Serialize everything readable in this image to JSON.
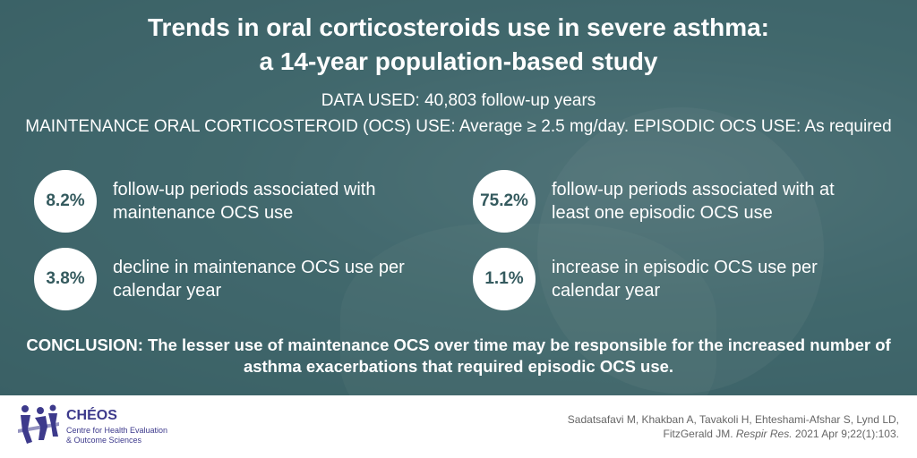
{
  "header": {
    "title_line1": "Trends in oral corticosteroids use in severe asthma:",
    "title_line2": "a 14-year population-based study",
    "data_used": "DATA USED: 40,803 follow-up years",
    "ocs_definition": "MAINTENANCE ORAL CORTICOSTEROID (OCS) USE: Average ≥ 2.5 mg/day. EPISODIC OCS USE: As required"
  },
  "stats": [
    {
      "value": "8.2%",
      "text": "follow-up periods associated with maintenance OCS use"
    },
    {
      "value": "75.2%",
      "text": "follow-up periods associated with at least one episodic OCS use"
    },
    {
      "value": "3.8%",
      "text": "decline in maintenance OCS use per calendar year"
    },
    {
      "value": "1.1%",
      "text": "increase in episodic OCS use per calendar year"
    }
  ],
  "conclusion": "CONCLUSION: The lesser use of maintenance OCS over time may be responsible for the increased number of asthma exacerbations that required episodic OCS use.",
  "footer": {
    "logo_name": "CHÉOS",
    "logo_sub_line1": "Centre for Health Evaluation",
    "logo_sub_line2": "& Outcome Sciences",
    "citation_authors": "Sadatsafavi M, Khakban A, Tavakoli H, Ehteshami-Afshar S, Lynd LD, FitzGerald JM.",
    "citation_journal": "Respir Res.",
    "citation_details": "2021 Apr 9;22(1):103."
  },
  "colors": {
    "overlay": "#3f6367",
    "circle_text": "#345a5e",
    "logo": "#3d3a8c"
  },
  "icons": {
    "logo": "cheos-figures-icon"
  }
}
